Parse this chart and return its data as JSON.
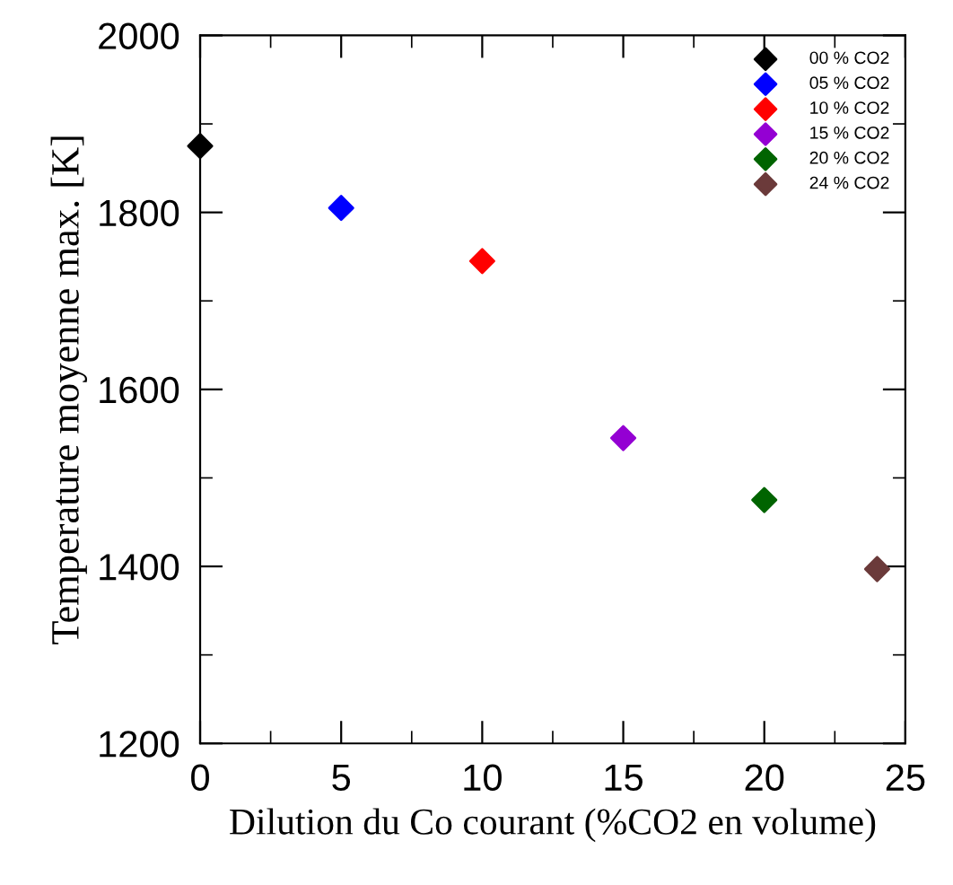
{
  "chart_data": {
    "type": "scatter",
    "xlabel": "Dilution du Co courant (%CO2 en volume)",
    "ylabel": "Temperature moyenne max. [K]",
    "xlim": [
      0,
      25
    ],
    "ylim": [
      1200,
      2000
    ],
    "xticks": [
      0,
      {
        "value": 2.5,
        "label": null
      },
      5,
      {
        "value": 7.5,
        "label": null
      },
      10,
      {
        "value": 12.5,
        "label": null
      },
      15,
      {
        "value": 17.5,
        "label": null
      },
      20,
      {
        "value": 22.5,
        "label": null
      },
      25
    ],
    "yticks": [
      1200,
      {
        "value": 1300,
        "label": null
      },
      1400,
      {
        "value": 1500,
        "label": null
      },
      1600,
      {
        "value": 1700,
        "label": null
      },
      1800,
      {
        "value": 1900,
        "label": null
      },
      2000
    ],
    "marker": "diamond",
    "legend": "top right",
    "grid": false,
    "series": [
      {
        "name": "00 % CO2",
        "color": "#000000",
        "x": [
          0
        ],
        "values": [
          1875
        ]
      },
      {
        "name": "05 % CO2",
        "color": "#0000ff",
        "x": [
          5
        ],
        "values": [
          1805
        ]
      },
      {
        "name": "10 % CO2",
        "color": "#ff0000",
        "x": [
          10
        ],
        "values": [
          1745
        ]
      },
      {
        "name": "15 % CO2",
        "color": "#9400d3",
        "x": [
          15
        ],
        "values": [
          1545
        ]
      },
      {
        "name": "20 % CO2",
        "color": "#006400",
        "x": [
          20
        ],
        "values": [
          1475
        ]
      },
      {
        "name": "24 % CO2",
        "color": "#6b3a3a",
        "x": [
          24
        ],
        "values": [
          1397
        ]
      }
    ]
  }
}
